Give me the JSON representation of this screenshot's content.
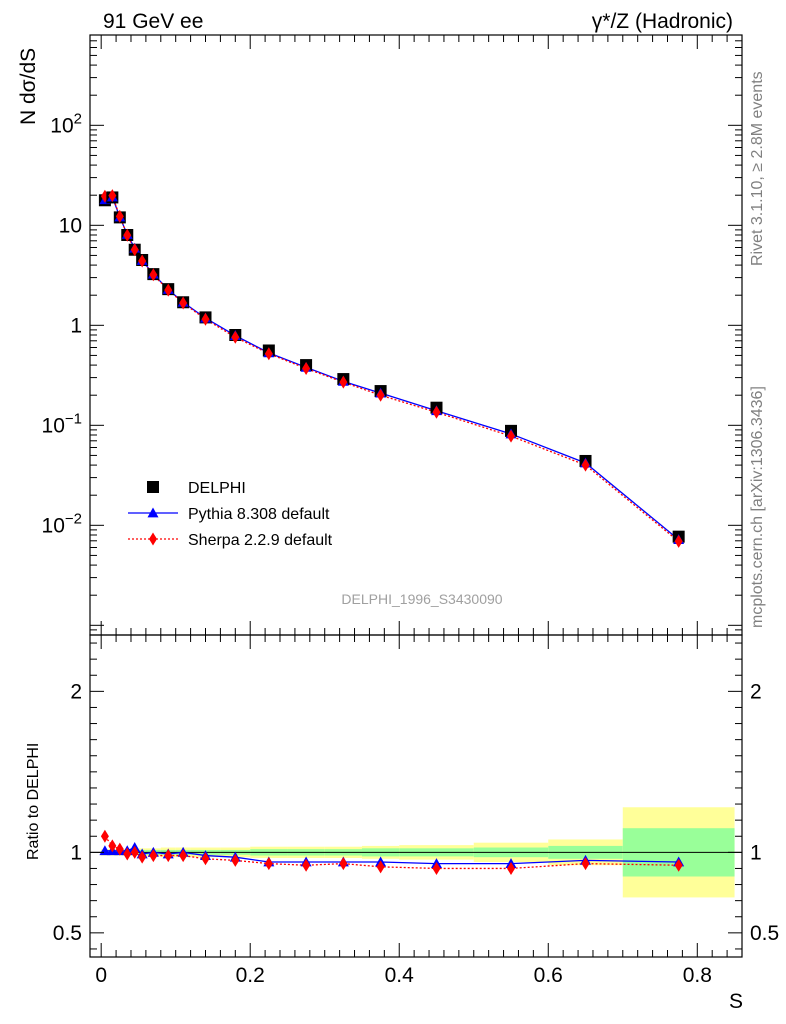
{
  "header": {
    "left_title": "91 GeV ee",
    "right_title": "γ*/Z (Hadronic)"
  },
  "side_labels": {
    "rivet": "Rivet 3.1.10, ≥ 2.8M events",
    "mcplots": "mcplots.cern.ch [arXiv:1306.3436]"
  },
  "watermark": "DELPHI_1996_S3430090",
  "colors": {
    "data": "#000000",
    "pythia": "#0000ff",
    "sherpa": "#ff0000",
    "band_inner": "#99ff99",
    "band_outer": "#ffff99"
  },
  "chart_data": [
    {
      "type": "line",
      "panel": "main",
      "ylabel": "N dσ/dS",
      "yscale": "log",
      "xlim": [
        -0.015,
        0.86
      ],
      "ylim": [
        0.0008,
        800
      ],
      "ytick_labels": [
        "10^-2",
        "10^-1",
        "1",
        "10",
        "10^2"
      ],
      "x": [
        0.005,
        0.015,
        0.025,
        0.035,
        0.045,
        0.055,
        0.07,
        0.09,
        0.11,
        0.14,
        0.18,
        0.225,
        0.275,
        0.325,
        0.375,
        0.45,
        0.55,
        0.65,
        0.775
      ],
      "series": [
        {
          "name": "DELPHI",
          "marker": "square",
          "values": [
            17.8,
            19.0,
            12.0,
            8.0,
            5.7,
            4.5,
            3.25,
            2.3,
            1.7,
            1.2,
            0.8,
            0.56,
            0.4,
            0.29,
            0.22,
            0.15,
            0.088,
            0.044,
            0.0077
          ]
        },
        {
          "name": "Pythia 8.308 default",
          "marker": "triangle",
          "values": [
            18.0,
            19.2,
            12.1,
            8.1,
            5.9,
            4.45,
            3.25,
            2.28,
            1.7,
            1.18,
            0.79,
            0.53,
            0.38,
            0.275,
            0.21,
            0.14,
            0.082,
            0.042,
            0.0072
          ]
        },
        {
          "name": "Sherpa 2.2.9 default",
          "marker": "diamond",
          "values": [
            19.5,
            19.8,
            12.3,
            7.95,
            5.7,
            4.4,
            3.2,
            2.25,
            1.67,
            1.15,
            0.76,
            0.52,
            0.37,
            0.27,
            0.2,
            0.135,
            0.078,
            0.04,
            0.0069
          ]
        }
      ],
      "legend": [
        "DELPHI",
        "Pythia 8.308 default",
        "Sherpa 2.2.9 default"
      ],
      "legend_position": "bottom-left"
    },
    {
      "type": "line",
      "panel": "ratio",
      "ylabel": "Ratio to DELPHI",
      "xlabel": "S",
      "xlim": [
        -0.015,
        0.86
      ],
      "ylim": [
        0.35,
        2.35
      ],
      "xtick_labels": [
        "0",
        "0.2",
        "0.4",
        "0.6",
        "0.8"
      ],
      "ytick_labels": [
        "0.5",
        "1",
        "2"
      ],
      "bins": [
        [
          0.0,
          0.01
        ],
        [
          0.01,
          0.02
        ],
        [
          0.02,
          0.03
        ],
        [
          0.03,
          0.04
        ],
        [
          0.04,
          0.05
        ],
        [
          0.05,
          0.06
        ],
        [
          0.06,
          0.08
        ],
        [
          0.08,
          0.1
        ],
        [
          0.1,
          0.12
        ],
        [
          0.12,
          0.16
        ],
        [
          0.16,
          0.2
        ],
        [
          0.2,
          0.25
        ],
        [
          0.25,
          0.3
        ],
        [
          0.3,
          0.35
        ],
        [
          0.35,
          0.4
        ],
        [
          0.4,
          0.5
        ],
        [
          0.5,
          0.6
        ],
        [
          0.6,
          0.7
        ],
        [
          0.7,
          0.85
        ]
      ],
      "band_inner": [
        0.01,
        0.01,
        0.01,
        0.01,
        0.01,
        0.015,
        0.015,
        0.015,
        0.015,
        0.015,
        0.015,
        0.02,
        0.02,
        0.02,
        0.025,
        0.025,
        0.03,
        0.04,
        0.15
      ],
      "band_outer": [
        0.02,
        0.02,
        0.02,
        0.02,
        0.02,
        0.025,
        0.025,
        0.03,
        0.03,
        0.03,
        0.03,
        0.035,
        0.035,
        0.035,
        0.04,
        0.045,
        0.06,
        0.08,
        0.28
      ],
      "x": [
        0.005,
        0.015,
        0.025,
        0.035,
        0.045,
        0.055,
        0.07,
        0.09,
        0.11,
        0.14,
        0.18,
        0.225,
        0.275,
        0.325,
        0.375,
        0.45,
        0.55,
        0.65,
        0.775
      ],
      "series": [
        {
          "name": "Pythia 8.308 default",
          "values": [
            1.01,
            1.01,
            1.01,
            1.01,
            1.03,
            0.99,
            1.0,
            0.99,
            1.0,
            0.98,
            0.97,
            0.94,
            0.94,
            0.94,
            0.94,
            0.93,
            0.93,
            0.95,
            0.94
          ]
        },
        {
          "name": "Sherpa 2.2.9 default",
          "values": [
            1.1,
            1.04,
            1.02,
            0.99,
            1.0,
            0.97,
            0.98,
            0.98,
            0.98,
            0.96,
            0.95,
            0.93,
            0.92,
            0.93,
            0.91,
            0.9,
            0.9,
            0.93,
            0.92
          ]
        }
      ]
    }
  ]
}
